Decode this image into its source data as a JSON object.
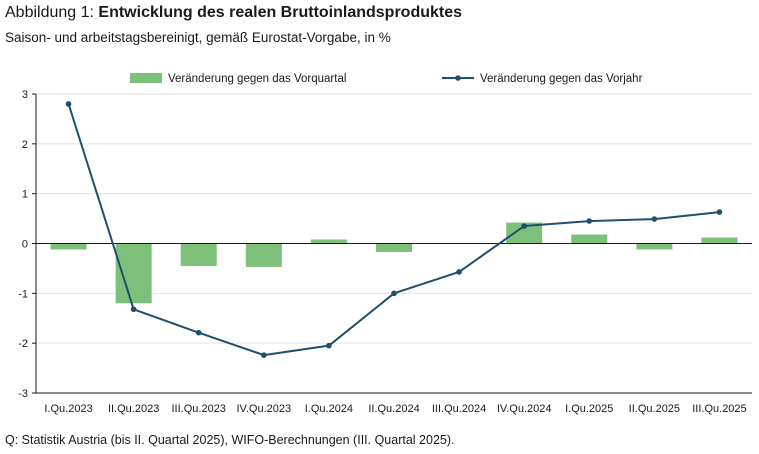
{
  "header": {
    "title_prefix": "Abbildung 1: ",
    "title_main": "Entwicklung des realen Bruttoinlandsproduktes",
    "subtitle": "Saison- und arbeitstagsbereinigt, gemäß Eurostat-Vorgabe, in %"
  },
  "footer": {
    "source": "Q: Statistik Austria (bis II. Quartal 2025), WIFO-Berechnungen (III. Quartal 2025)."
  },
  "colors": {
    "bar": "#7dc07a",
    "line": "#1f4e6e",
    "grid": "#e3e3e3",
    "axis": "#1a1a1a"
  },
  "chart_data": {
    "type": "bar+line",
    "title": "Entwicklung des realen Bruttoinlandsproduktes",
    "xlabel": "",
    "ylabel": "",
    "ylim": [
      -3,
      3
    ],
    "yticks": [
      3,
      2,
      1,
      0,
      -1,
      -2,
      -3
    ],
    "ytick_labels": [
      "3",
      "2",
      "1",
      "0",
      "-1",
      "-2",
      "-3"
    ],
    "grid": true,
    "legend_position": "top",
    "categories": [
      "I.Qu.2023",
      "II.Qu.2023",
      "III.Qu.2023",
      "IV.Qu.2023",
      "I.Qu.2024",
      "II.Qu.2024",
      "III.Qu.2024",
      "IV.Qu.2024",
      "I.Qu.2025",
      "II.Qu.2025",
      "III.Qu.2025"
    ],
    "series": [
      {
        "name": "Veränderung gegen das Vorquartal",
        "type": "bar",
        "values": [
          -0.12,
          -1.2,
          -0.45,
          -0.47,
          0.08,
          -0.17,
          0.0,
          0.42,
          0.18,
          -0.12,
          0.12
        ]
      },
      {
        "name": "Veränderung gegen das Vorjahr",
        "type": "line",
        "values": [
          2.8,
          -1.32,
          -1.79,
          -2.24,
          -2.05,
          -1.0,
          -0.57,
          0.35,
          0.45,
          0.49,
          0.63
        ]
      }
    ]
  }
}
